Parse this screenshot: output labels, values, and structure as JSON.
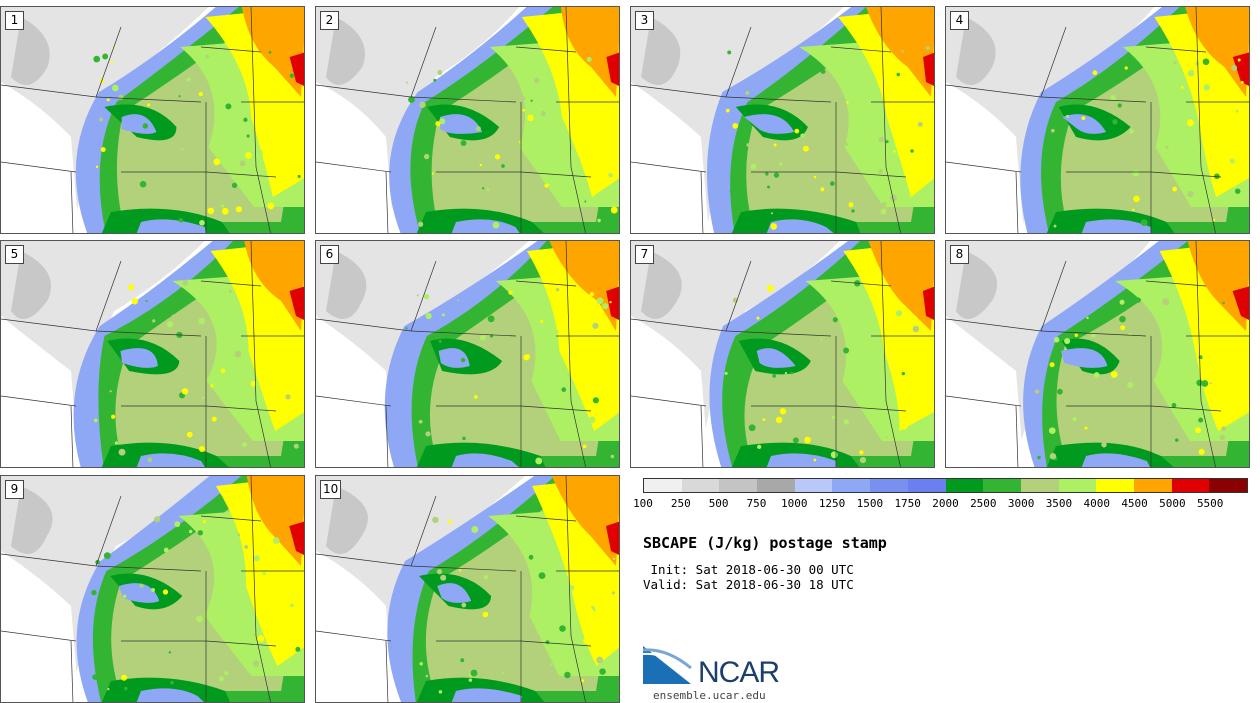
{
  "panels": [
    {
      "label": "1"
    },
    {
      "label": "2"
    },
    {
      "label": "3"
    },
    {
      "label": "4"
    },
    {
      "label": "5"
    },
    {
      "label": "6"
    },
    {
      "label": "7"
    },
    {
      "label": "8"
    },
    {
      "label": "9"
    },
    {
      "label": "10"
    }
  ],
  "legend": {
    "colors": [
      "#f0f0f0",
      "#d9d9d9",
      "#c4c4c4",
      "#a8a8a8",
      "#b8c8f8",
      "#8fa8f5",
      "#7890f0",
      "#6a7ff0",
      "#009a1e",
      "#33b533",
      "#b3d17a",
      "#aef064",
      "#ffff00",
      "#ffa500",
      "#e00000",
      "#8b0000"
    ],
    "ticks": [
      "100",
      "250",
      "500",
      "750",
      "1000",
      "1250",
      "1500",
      "1750",
      "2000",
      "2500",
      "3000",
      "3500",
      "4000",
      "4500",
      "5000",
      "5500"
    ]
  },
  "title": "SBCAPE (J/kg) postage stamp",
  "init": " Init: Sat 2018-06-30 00 UTC",
  "valid": "Valid: Sat 2018-06-30 18 UTC",
  "logo": {
    "name": "NCAR",
    "url": "ensemble.ucar.edu"
  }
}
